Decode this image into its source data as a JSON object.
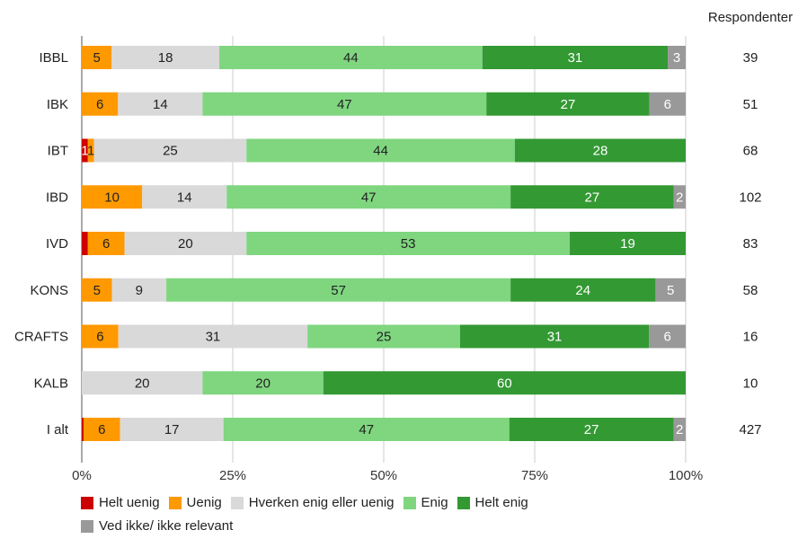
{
  "chart_data": {
    "type": "bar",
    "orientation": "horizontal",
    "stacked": "percent",
    "categories": [
      "IBBL",
      "IBK",
      "IBT",
      "IBD",
      "IVD",
      "KONS",
      "CRAFTS",
      "KALB",
      "I alt"
    ],
    "series": [
      {
        "name": "Helt uenig",
        "color": "#cc0000",
        "values": [
          0,
          0,
          1,
          0,
          1,
          0,
          0,
          0,
          0.3
        ],
        "labels": [
          "",
          "",
          "1",
          "",
          "",
          "",
          "",
          "",
          ""
        ]
      },
      {
        "name": "Uenig",
        "color": "#ff9900",
        "values": [
          5,
          6,
          1,
          10,
          6,
          5,
          6,
          0,
          6
        ],
        "labels": [
          "5",
          "6",
          "1",
          "10",
          "6",
          "5",
          "6",
          "",
          "6"
        ]
      },
      {
        "name": "Hverken enig eller uenig",
        "color": "#d9d9d9",
        "values": [
          18,
          14,
          25,
          14,
          20,
          9,
          31,
          20,
          17
        ],
        "labels": [
          "18",
          "14",
          "25",
          "14",
          "20",
          "9",
          "31",
          "20",
          "17"
        ]
      },
      {
        "name": "Enig",
        "color": "#7fd67f",
        "values": [
          44,
          47,
          44,
          47,
          53,
          57,
          25,
          20,
          47
        ],
        "labels": [
          "44",
          "47",
          "44",
          "47",
          "53",
          "57",
          "25",
          "20",
          "47"
        ]
      },
      {
        "name": "Helt enig",
        "color": "#339933",
        "values": [
          31,
          27,
          28,
          27,
          19,
          24,
          31,
          60,
          27
        ],
        "labels": [
          "31",
          "27",
          "28",
          "27",
          "19",
          "24",
          "31",
          "60",
          "27"
        ]
      },
      {
        "name": "Ved ikke/ ikke relevant",
        "color": "#999999",
        "values": [
          3,
          6,
          0,
          2,
          0,
          5,
          6,
          0,
          2
        ],
        "labels": [
          "3",
          "6",
          "",
          "2",
          "",
          "5",
          "6",
          "",
          "2"
        ]
      }
    ],
    "respondents_header": "Respondenter",
    "respondents": [
      "39",
      "51",
      "68",
      "102",
      "83",
      "58",
      "16",
      "10",
      "427"
    ],
    "x_ticks": [
      "0%",
      "25%",
      "50%",
      "75%",
      "100%"
    ],
    "xlim": [
      0,
      100
    ],
    "grid": true,
    "legend_position": "bottom"
  }
}
